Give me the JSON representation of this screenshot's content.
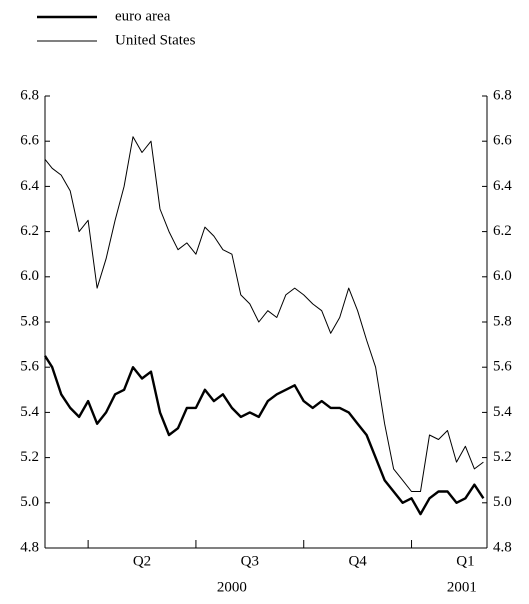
{
  "chart_data": {
    "type": "line",
    "x": [
      1.8,
      2,
      2.25,
      2.5,
      2.75,
      3,
      3.25,
      3.5,
      3.75,
      4,
      4.25,
      4.5,
      4.75,
      5,
      5.25,
      5.5,
      5.75,
      6,
      6.25,
      6.5,
      6.75,
      7,
      7.25,
      7.5,
      7.75,
      8,
      8.25,
      8.5,
      8.75,
      9,
      9.25,
      9.5,
      9.75,
      10,
      10.25,
      10.5,
      10.75,
      11,
      11.25,
      11.5,
      11.75,
      12,
      12.25,
      12.5,
      12.75,
      13,
      13.25,
      13.5,
      13.75,
      14
    ],
    "series": [
      {
        "name": "euro area",
        "color": "#000000",
        "width": 2.4,
        "values": [
          5.65,
          5.6,
          5.48,
          5.42,
          5.38,
          5.45,
          5.35,
          5.4,
          5.48,
          5.5,
          5.6,
          5.55,
          5.58,
          5.4,
          5.3,
          5.33,
          5.42,
          5.42,
          5.5,
          5.45,
          5.48,
          5.42,
          5.38,
          5.4,
          5.38,
          5.45,
          5.48,
          5.5,
          5.52,
          5.45,
          5.42,
          5.45,
          5.42,
          5.42,
          5.4,
          5.35,
          5.3,
          5.2,
          5.1,
          5.05,
          5.0,
          5.02,
          4.95,
          5.02,
          5.05,
          5.05,
          5.0,
          5.02,
          5.08,
          5.02
        ]
      },
      {
        "name": "United States",
        "color": "#000000",
        "width": 1,
        "values": [
          6.52,
          6.48,
          6.45,
          6.38,
          6.2,
          6.25,
          5.95,
          6.08,
          6.25,
          6.4,
          6.62,
          6.55,
          6.6,
          6.3,
          6.2,
          6.12,
          6.15,
          6.1,
          6.22,
          6.18,
          6.12,
          6.1,
          5.92,
          5.88,
          5.8,
          5.85,
          5.82,
          5.92,
          5.95,
          5.92,
          5.88,
          5.85,
          5.75,
          5.82,
          5.95,
          5.85,
          5.72,
          5.6,
          5.35,
          5.15,
          5.1,
          5.05,
          5.05,
          5.3,
          5.28,
          5.32,
          5.18,
          5.25,
          5.15,
          5.18
        ]
      }
    ],
    "xlim": [
      1.8,
      14.1
    ],
    "quarter_boundaries": [
      3,
      6,
      9,
      12
    ],
    "quarter_labels": [
      {
        "value": 4.5,
        "label": "Q2"
      },
      {
        "value": 7.5,
        "label": "Q3"
      },
      {
        "value": 10.5,
        "label": "Q4"
      },
      {
        "value": 13.5,
        "label": "Q1"
      }
    ],
    "year_labels": [
      {
        "value": 7,
        "label": "2000"
      },
      {
        "value": 13.4,
        "label": "2001"
      }
    ],
    "ylim": [
      4.8,
      6.8
    ],
    "yticks": [
      6.8,
      6.6,
      6.4,
      6.2,
      {
        "value": 6,
        "label": "6.0"
      },
      5.8,
      5.6,
      5.4,
      5.2,
      {
        "value": 5,
        "label": "5.0"
      },
      4.8
    ]
  }
}
